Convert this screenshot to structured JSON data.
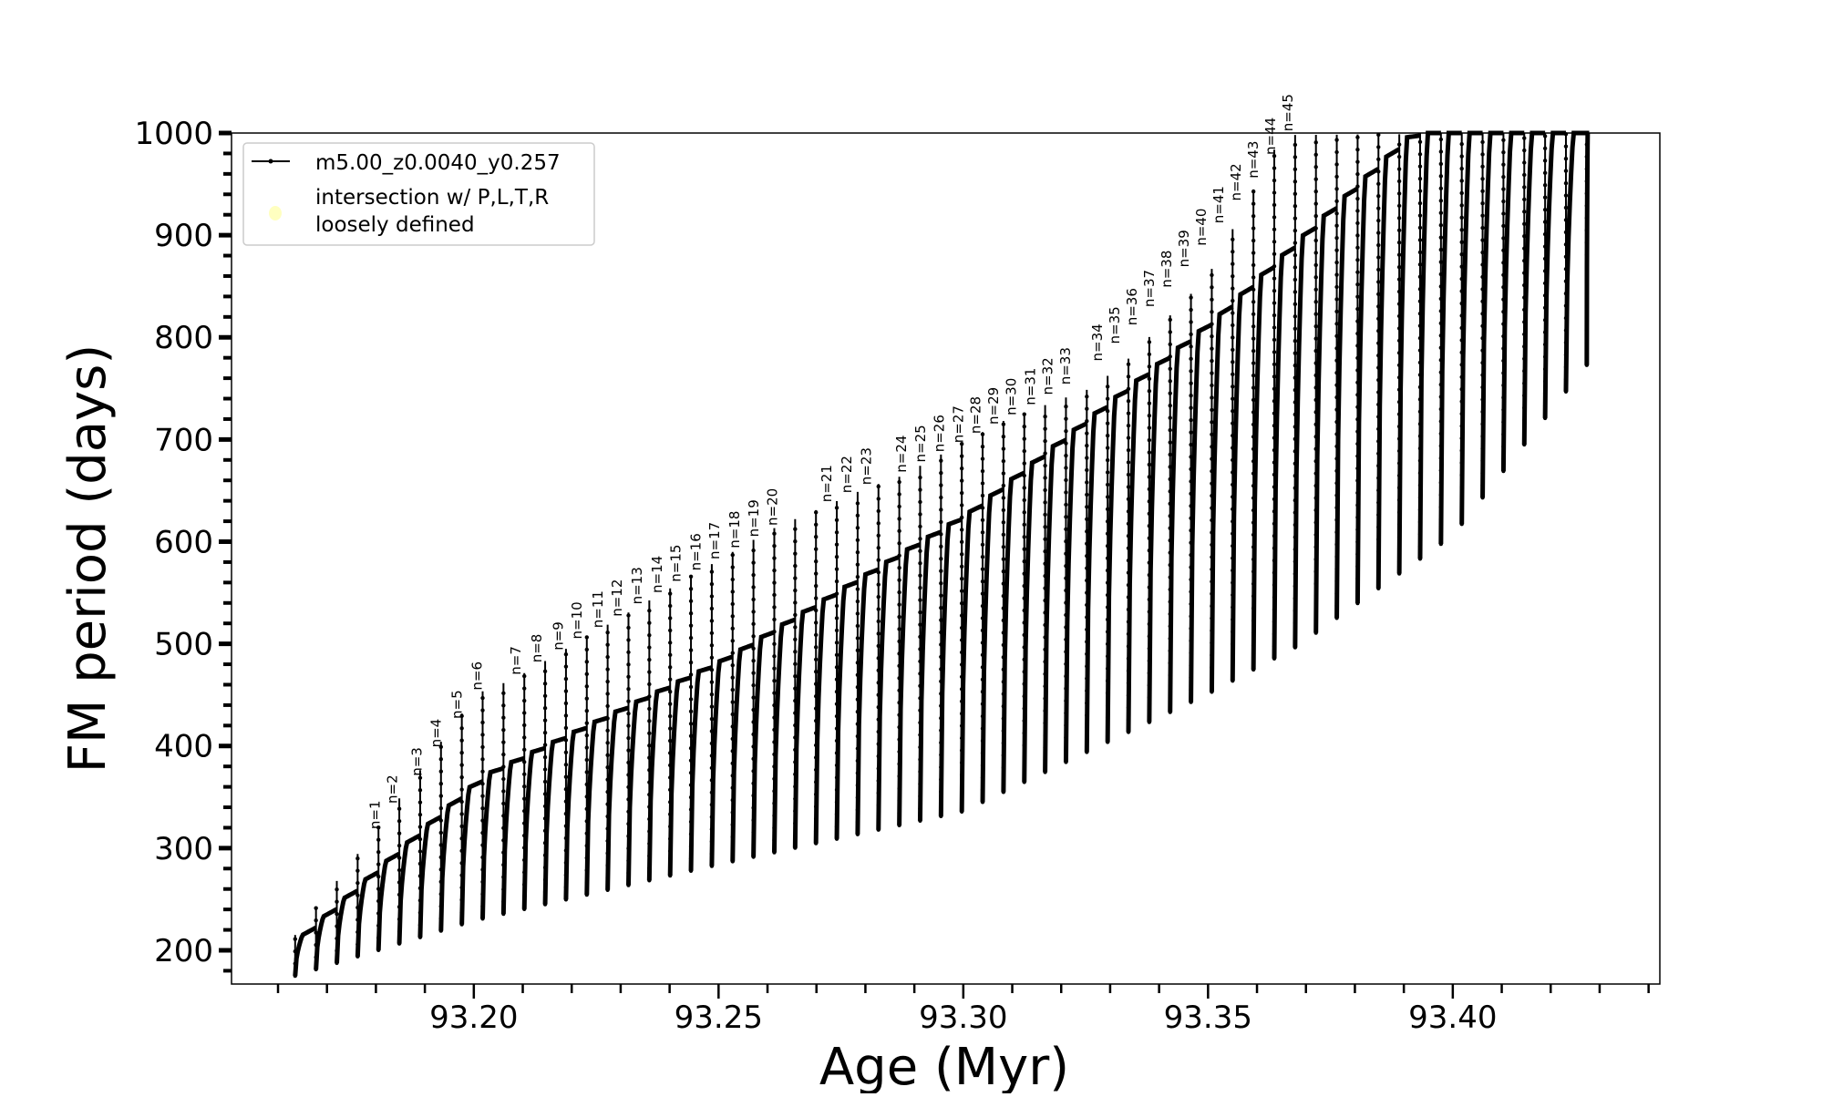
{
  "chart_data": {
    "type": "line",
    "title": "",
    "xlabel": "Age (Myr)",
    "ylabel": "FM period (days)",
    "xlim": [
      93.1505,
      93.4423
    ],
    "ylim": [
      167,
      1000
    ],
    "xticks": [
      "93.20",
      "93.25",
      "93.30",
      "93.35",
      "93.40"
    ],
    "xtick_values": [
      93.2,
      93.25,
      93.3,
      93.35,
      93.4
    ],
    "xminor_step": 0.01,
    "yticks": [
      "200",
      "300",
      "400",
      "500",
      "600",
      "700",
      "800",
      "900",
      "1000"
    ],
    "ytick_values": [
      200,
      300,
      400,
      500,
      600,
      700,
      800,
      900,
      1000
    ],
    "yminor_step": 20,
    "grid": false,
    "legend": {
      "placement": "top-left",
      "entries": [
        {
          "label": "m5.00_z0.0040_y0.257",
          "color": "#000000",
          "marker": "line-dot"
        },
        {
          "label": "intersection w/ P,L,T,R",
          "label2": "loosely defined",
          "color": "#ffffc0",
          "marker": "circle"
        }
      ]
    },
    "series": [
      {
        "name": "m5.00_z0.0040_y0.257",
        "color": "#000000",
        "pulse_first_age": 93.1635,
        "pulse_spacing": 0.004256,
        "pulse_count": 63,
        "min_envelope": [
          [
            93.1635,
            175
          ],
          [
            93.2,
            229
          ],
          [
            93.25,
            284
          ],
          [
            93.3,
            336
          ],
          [
            93.35,
            451
          ],
          [
            93.368,
            497
          ],
          [
            93.4,
            606
          ],
          [
            93.4274,
            773
          ]
        ],
        "loop_top_envelope": [
          [
            93.1635,
            215
          ],
          [
            93.2,
            370
          ],
          [
            93.25,
            486
          ],
          [
            93.3,
            630
          ],
          [
            93.35,
            819
          ],
          [
            93.39,
            1000
          ],
          [
            93.4274,
            1000
          ]
        ],
        "spike_top_envelope": [
          [
            93.1635,
            215
          ],
          [
            93.1796,
            315
          ],
          [
            93.2005,
            451
          ],
          [
            93.2084,
            466
          ],
          [
            93.2608,
            612
          ],
          [
            93.2719,
            635
          ],
          [
            93.28,
            652
          ],
          [
            93.2872,
            664
          ],
          [
            93.3089,
            720
          ],
          [
            93.326,
            750
          ],
          [
            93.3325,
            773
          ],
          [
            93.35,
            860
          ],
          [
            93.3651,
            998
          ],
          [
            93.4274,
            1000
          ]
        ]
      }
    ],
    "annotations": [
      {
        "text": "n=1",
        "age": 93.1796,
        "value": 315
      },
      {
        "text": "n=2",
        "age": 93.1832,
        "value": 340
      },
      {
        "text": "n=3",
        "age": 93.1882,
        "value": 367
      },
      {
        "text": "n=4",
        "age": 93.1921,
        "value": 395
      },
      {
        "text": "n=5",
        "age": 93.1964,
        "value": 423
      },
      {
        "text": "n=6",
        "age": 93.2005,
        "value": 451
      },
      {
        "text": "n=7",
        "age": 93.2084,
        "value": 466
      },
      {
        "text": "n=8",
        "age": 93.2127,
        "value": 478
      },
      {
        "text": "n=9",
        "age": 93.2171,
        "value": 490
      },
      {
        "text": "n=10",
        "age": 93.2209,
        "value": 501
      },
      {
        "text": "n=11",
        "age": 93.2252,
        "value": 512
      },
      {
        "text": "n=12",
        "age": 93.2291,
        "value": 523
      },
      {
        "text": "n=13",
        "age": 93.2332,
        "value": 535
      },
      {
        "text": "n=14",
        "age": 93.2373,
        "value": 546
      },
      {
        "text": "n=15",
        "age": 93.2411,
        "value": 557
      },
      {
        "text": "n=16",
        "age": 93.2452,
        "value": 568
      },
      {
        "text": "n=17",
        "age": 93.249,
        "value": 579
      },
      {
        "text": "n=18",
        "age": 93.2531,
        "value": 590
      },
      {
        "text": "n=19",
        "age": 93.257,
        "value": 601
      },
      {
        "text": "n=20",
        "age": 93.2608,
        "value": 612
      },
      {
        "text": "n=21",
        "age": 93.2719,
        "value": 635
      },
      {
        "text": "n=22",
        "age": 93.276,
        "value": 644
      },
      {
        "text": "n=23",
        "age": 93.28,
        "value": 652
      },
      {
        "text": "n=24",
        "age": 93.2872,
        "value": 664
      },
      {
        "text": "n=25",
        "age": 93.2911,
        "value": 674
      },
      {
        "text": "n=26",
        "age": 93.2949,
        "value": 684
      },
      {
        "text": "n=27",
        "age": 93.2988,
        "value": 693
      },
      {
        "text": "n=28",
        "age": 93.3024,
        "value": 702
      },
      {
        "text": "n=29",
        "age": 93.306,
        "value": 711
      },
      {
        "text": "n=30",
        "age": 93.3096,
        "value": 720
      },
      {
        "text": "n=31",
        "age": 93.3135,
        "value": 730
      },
      {
        "text": "n=32",
        "age": 93.3171,
        "value": 740
      },
      {
        "text": "n=33",
        "age": 93.3207,
        "value": 750
      },
      {
        "text": "n=34",
        "age": 93.3272,
        "value": 773
      },
      {
        "text": "n=35",
        "age": 93.3305,
        "value": 790
      },
      {
        "text": "n=36",
        "age": 93.3341,
        "value": 808
      },
      {
        "text": "n=37",
        "age": 93.3377,
        "value": 826
      },
      {
        "text": "n=38",
        "age": 93.3411,
        "value": 845
      },
      {
        "text": "n=39",
        "age": 93.3445,
        "value": 865
      },
      {
        "text": "n=40",
        "age": 93.3478,
        "value": 886
      },
      {
        "text": "n=41",
        "age": 93.3514,
        "value": 908
      },
      {
        "text": "n=42",
        "age": 93.3548,
        "value": 930
      },
      {
        "text": "n=43",
        "age": 93.3579,
        "value": 952
      },
      {
        "text": "n=44",
        "age": 93.3613,
        "value": 975
      },
      {
        "text": "n=45",
        "age": 93.3644,
        "value": 998
      }
    ]
  }
}
